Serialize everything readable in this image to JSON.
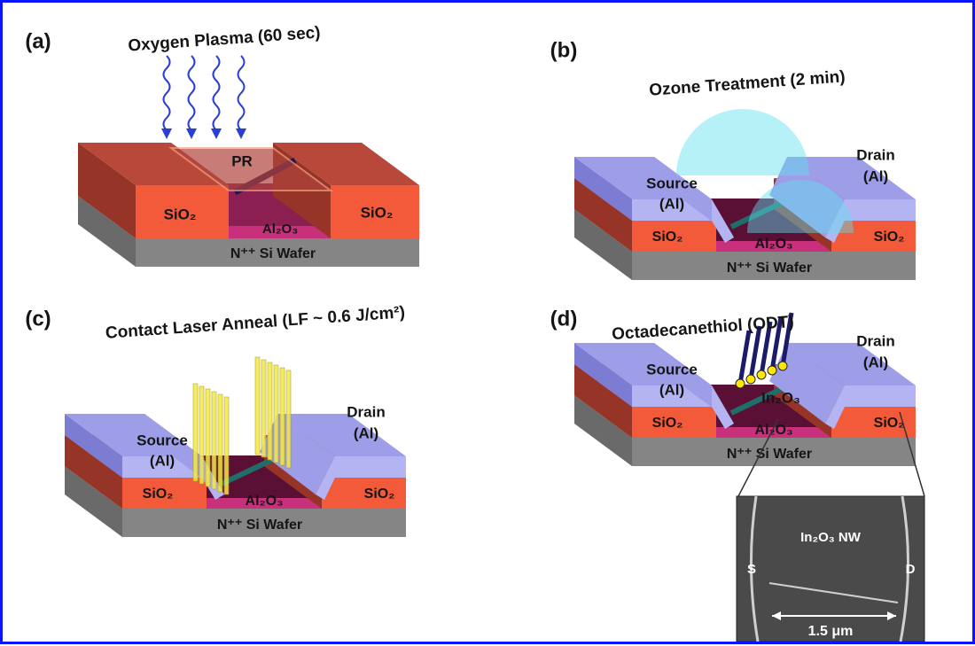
{
  "panels": [
    {
      "label": "(a)",
      "title": "Oxygen Plasma (60 sec)",
      "annotations": [
        "PR",
        "SiO₂",
        "SiO₂",
        "Al₂O₃",
        "N⁺⁺ Si Wafer"
      ]
    },
    {
      "label": "(b)",
      "title": "Ozone Treatment (2 min)",
      "annotations": [
        "Source",
        "(Al)",
        "Drain",
        "(Al)",
        "SiO₂",
        "SiO₂",
        "Al₂O₃",
        "N⁺⁺ Si Wafer"
      ]
    },
    {
      "label": "(c)",
      "title": "Contact Laser Anneal (LF ~ 0.6 J/cm²)",
      "annotations": [
        "Source",
        "(Al)",
        "Drain",
        "(Al)",
        "SiO₂",
        "SiO₂",
        "Al₂O₃",
        "N⁺⁺ Si Wafer"
      ]
    },
    {
      "label": "(d)",
      "title": "Octadecanethiol (ODT)",
      "annotations": [
        "Source",
        "(Al)",
        "Drain",
        "(Al)",
        "In₂O₃",
        "SiO₂",
        "SiO₂",
        "Al₂O₃",
        "N⁺⁺ Si Wafer"
      ],
      "inset": {
        "label": "In₂O₃ NW",
        "left": "S",
        "right": "D",
        "scale": "1.5 μm"
      }
    }
  ]
}
